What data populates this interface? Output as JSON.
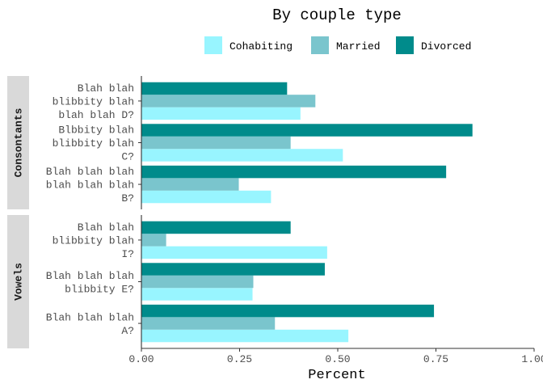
{
  "chart_data": {
    "type": "bar",
    "orientation": "horizontal",
    "title": "By couple type",
    "xlabel": "Percent",
    "ylabel": "",
    "xlim": [
      0,
      1
    ],
    "x_ticks": [
      0,
      0.25,
      0.5,
      0.75,
      1.0
    ],
    "x_tick_labels": [
      "0.00",
      "0.25",
      "0.50",
      "0.75",
      "1.00"
    ],
    "legend_position": "top",
    "grid": false,
    "series": [
      {
        "name": "Cohabiting",
        "color": "#98F5FF"
      },
      {
        "name": "Married",
        "color": "#7AC5CD"
      },
      {
        "name": "Divorced",
        "color": "#008B8B"
      }
    ],
    "facets": [
      {
        "label": "Consontants",
        "categories": [
          {
            "label_lines": [
              "Blah blah",
              "blibbity blah",
              "blah blah D?"
            ],
            "values": [
              0.405,
              0.443,
              0.371
            ]
          },
          {
            "label_lines": [
              "Blbbity blah",
              "blibbity blah",
              "C?"
            ],
            "values": [
              0.513,
              0.38,
              0.843
            ]
          },
          {
            "label_lines": [
              "Blah blah blah",
              "blah blah blah",
              "B?"
            ],
            "values": [
              0.33,
              0.248,
              0.776
            ]
          }
        ]
      },
      {
        "label": "Vowels",
        "categories": [
          {
            "label_lines": [
              "Blah blah",
              "blibbity blah",
              "I?"
            ],
            "values": [
              0.473,
              0.063,
              0.38
            ]
          },
          {
            "label_lines": [
              "Blah blah blah",
              "blibbity E?"
            ],
            "values": [
              0.283,
              0.285,
              0.467
            ]
          },
          {
            "label_lines": [
              "Blah blah blah",
              "A?"
            ],
            "values": [
              0.527,
              0.34,
              0.745
            ]
          }
        ]
      }
    ]
  }
}
